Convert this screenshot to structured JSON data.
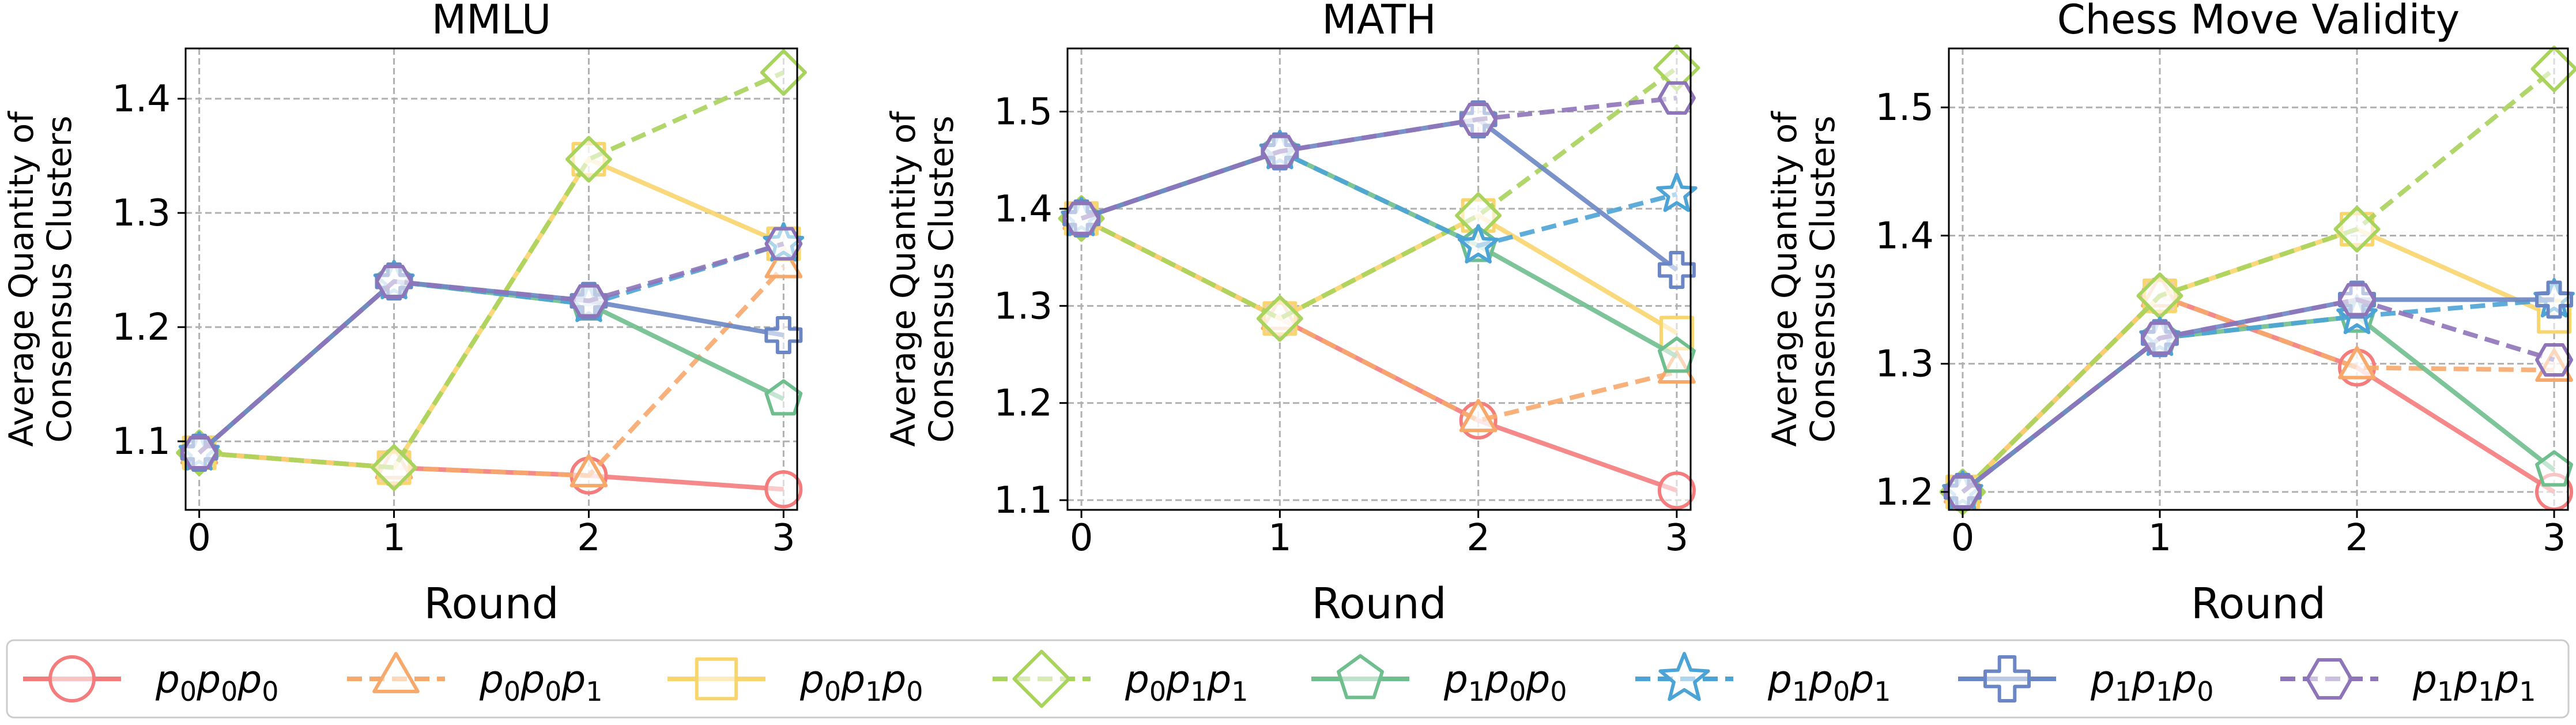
{
  "chart_data": [
    {
      "type": "line",
      "title": "MMLU",
      "xlabel": "Round",
      "ylabel": [
        "Average Quantity of",
        "Consensus Clusters"
      ],
      "x": [
        0,
        1,
        2,
        3
      ],
      "xticks": [
        "0",
        "1",
        "2",
        "3"
      ],
      "yticks": [
        "1.1",
        "1.2",
        "1.3",
        "1.4"
      ],
      "ytick_values": [
        1.1,
        1.2,
        1.3,
        1.4
      ],
      "xlim": [
        -0.07,
        3.07
      ],
      "ylim": [
        1.04,
        1.444
      ],
      "grid": true,
      "series": [
        {
          "name": "p0p0p0",
          "values": [
            1.09,
            1.077,
            1.07,
            1.058
          ]
        },
        {
          "name": "p0p0p1",
          "values": [
            1.09,
            1.077,
            1.07,
            1.253
          ]
        },
        {
          "name": "p0p1p0",
          "values": [
            1.09,
            1.077,
            1.347,
            1.273
          ]
        },
        {
          "name": "p0p1p1",
          "values": [
            1.09,
            1.077,
            1.347,
            1.423
          ]
        },
        {
          "name": "p1p0p0",
          "values": [
            1.09,
            1.24,
            1.22,
            1.137
          ]
        },
        {
          "name": "p1p0p1",
          "values": [
            1.09,
            1.24,
            1.22,
            1.273
          ]
        },
        {
          "name": "p1p1p0",
          "values": [
            1.09,
            1.24,
            1.223,
            1.193
          ]
        },
        {
          "name": "p1p1p1",
          "values": [
            1.09,
            1.24,
            1.223,
            1.273
          ]
        }
      ]
    },
    {
      "type": "line",
      "title": "MATH",
      "xlabel": "Round",
      "ylabel": [
        "Average Quantity of",
        "Consensus Clusters"
      ],
      "x": [
        0,
        1,
        2,
        3
      ],
      "xticks": [
        "0",
        "1",
        "2",
        "3"
      ],
      "yticks": [
        "1.1",
        "1.2",
        "1.3",
        "1.4",
        "1.5"
      ],
      "ytick_values": [
        1.1,
        1.2,
        1.3,
        1.4,
        1.5
      ],
      "xlim": [
        -0.07,
        3.07
      ],
      "ylim": [
        1.09,
        1.565
      ],
      "grid": true,
      "series": [
        {
          "name": "p0p0p0",
          "values": [
            1.39,
            1.287,
            1.182,
            1.11
          ]
        },
        {
          "name": "p0p0p1",
          "values": [
            1.39,
            1.287,
            1.182,
            1.232
          ]
        },
        {
          "name": "p0p1p0",
          "values": [
            1.39,
            1.287,
            1.393,
            1.272
          ]
        },
        {
          "name": "p0p1p1",
          "values": [
            1.39,
            1.287,
            1.393,
            1.545
          ]
        },
        {
          "name": "p1p0p0",
          "values": [
            1.39,
            1.459,
            1.362,
            1.248
          ]
        },
        {
          "name": "p1p0p1",
          "values": [
            1.39,
            1.459,
            1.362,
            1.415
          ]
        },
        {
          "name": "p1p1p0",
          "values": [
            1.39,
            1.459,
            1.492,
            1.337
          ]
        },
        {
          "name": "p1p1p1",
          "values": [
            1.39,
            1.459,
            1.492,
            1.514
          ]
        }
      ]
    },
    {
      "type": "line",
      "title": "Chess Move Validity",
      "xlabel": "Round",
      "ylabel": [
        "Average Quantity of",
        "Consensus Clusters"
      ],
      "x": [
        0,
        1,
        2,
        3
      ],
      "xticks": [
        "0",
        "1",
        "2",
        "3"
      ],
      "yticks": [
        "1.2",
        "1.3",
        "1.4",
        "1.5"
      ],
      "ytick_values": [
        1.2,
        1.3,
        1.4,
        1.5
      ],
      "xlim": [
        -0.07,
        3.07
      ],
      "ylim": [
        1.186,
        1.546
      ],
      "grid": true,
      "series": [
        {
          "name": "p0p0p0",
          "values": [
            1.2,
            1.353,
            1.297,
            1.2
          ]
        },
        {
          "name": "p0p0p1",
          "values": [
            1.2,
            1.353,
            1.297,
            1.295
          ]
        },
        {
          "name": "p0p1p0",
          "values": [
            1.2,
            1.353,
            1.405,
            1.337
          ]
        },
        {
          "name": "p0p1p1",
          "values": [
            1.2,
            1.353,
            1.405,
            1.53
          ]
        },
        {
          "name": "p1p0p0",
          "values": [
            1.2,
            1.32,
            1.337,
            1.217
          ]
        },
        {
          "name": "p1p0p1",
          "values": [
            1.2,
            1.32,
            1.337,
            1.35
          ]
        },
        {
          "name": "p1p1p0",
          "values": [
            1.2,
            1.32,
            1.35,
            1.35
          ]
        },
        {
          "name": "p1p1p1",
          "values": [
            1.2,
            1.32,
            1.35,
            1.303
          ]
        }
      ]
    }
  ],
  "legend": {
    "placement": "bottom",
    "entries": [
      {
        "series": "p0p0p0",
        "base": "p",
        "subs": [
          "0",
          "0",
          "0"
        ],
        "color": "#f47c7c",
        "marker": "circle",
        "dashed": false
      },
      {
        "series": "p0p0p1",
        "base": "p",
        "subs": [
          "0",
          "0",
          "1"
        ],
        "color": "#f7a96b",
        "marker": "triangle",
        "dashed": true
      },
      {
        "series": "p0p1p0",
        "base": "p",
        "subs": [
          "0",
          "1",
          "0"
        ],
        "color": "#f9d56e",
        "marker": "square",
        "dashed": false
      },
      {
        "series": "p0p1p1",
        "base": "p",
        "subs": [
          "0",
          "1",
          "1"
        ],
        "color": "#a8d35c",
        "marker": "diamond",
        "dashed": true
      },
      {
        "series": "p1p0p0",
        "base": "p",
        "subs": [
          "1",
          "0",
          "0"
        ],
        "color": "#6fbf8e",
        "marker": "pentagon",
        "dashed": false
      },
      {
        "series": "p1p0p1",
        "base": "p",
        "subs": [
          "1",
          "0",
          "1"
        ],
        "color": "#4ba3d6",
        "marker": "star",
        "dashed": true
      },
      {
        "series": "p1p1p0",
        "base": "p",
        "subs": [
          "1",
          "1",
          "0"
        ],
        "color": "#6b86c4",
        "marker": "plus",
        "dashed": false
      },
      {
        "series": "p1p1p1",
        "base": "p",
        "subs": [
          "1",
          "1",
          "1"
        ],
        "color": "#8e74b8",
        "marker": "hexagon",
        "dashed": true
      }
    ]
  }
}
